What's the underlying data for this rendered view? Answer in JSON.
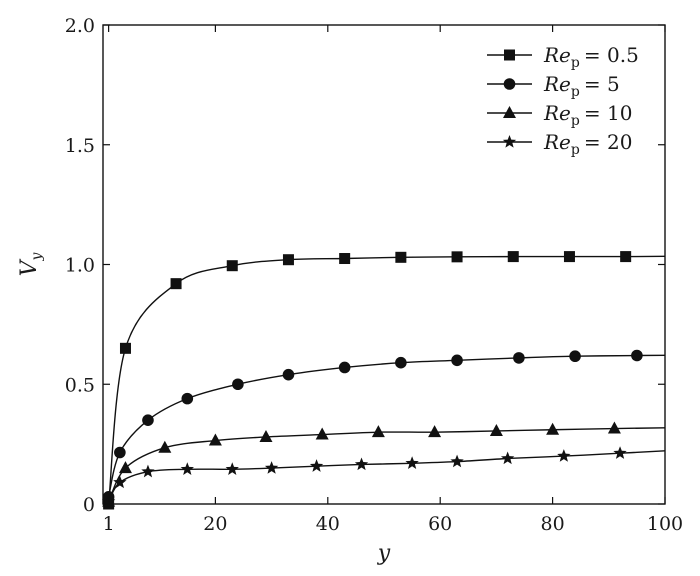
{
  "chart_data": {
    "type": "line",
    "xlabel": "y",
    "ylabel": "V",
    "ylabel_sub": "y",
    "xlim": [
      0,
      100
    ],
    "ylim": [
      0,
      2.0
    ],
    "xticks": [
      1,
      20,
      40,
      60,
      80,
      100
    ],
    "xtick_labels": [
      "1",
      "20",
      "40",
      "60",
      "80",
      "100"
    ],
    "yticks": [
      0,
      0.5,
      1.0,
      1.5,
      2.0
    ],
    "ytick_labels": [
      "0",
      "0.5",
      "1.0",
      "1.5",
      "2.0"
    ],
    "grid": false,
    "legend_position": "top-right",
    "series": [
      {
        "name": "Re_p = 0.5",
        "legend_label": {
          "base": "Re",
          "sub": "p",
          "value": "= 0.5"
        },
        "marker": "square",
        "color": "#111111",
        "x": [
          1,
          4,
          13,
          23,
          33,
          43,
          53,
          63,
          73,
          83,
          93
        ],
        "y": [
          0.0,
          0.65,
          0.92,
          0.995,
          1.02,
          1.025,
          1.03,
          1.032,
          1.033,
          1.033,
          1.033
        ]
      },
      {
        "name": "Re_p = 5",
        "legend_label": {
          "base": "Re",
          "sub": "p",
          "value": "= 5"
        },
        "marker": "circle",
        "color": "#111111",
        "x": [
          1,
          3,
          8,
          15,
          24,
          33,
          43,
          53,
          63,
          74,
          84,
          95
        ],
        "y": [
          0.03,
          0.215,
          0.35,
          0.44,
          0.5,
          0.54,
          0.57,
          0.59,
          0.6,
          0.61,
          0.617,
          0.62
        ]
      },
      {
        "name": "Re_p = 10",
        "legend_label": {
          "base": "Re",
          "sub": "p",
          "value": "= 10"
        },
        "marker": "triangle",
        "color": "#111111",
        "x": [
          1,
          4,
          11,
          20,
          29,
          39,
          49,
          59,
          70,
          80,
          91
        ],
        "y": [
          0.01,
          0.15,
          0.235,
          0.265,
          0.28,
          0.29,
          0.3,
          0.3,
          0.305,
          0.31,
          0.315
        ]
      },
      {
        "name": "Re_p = 20",
        "legend_label": {
          "base": "Re",
          "sub": "p",
          "value": "= 20"
        },
        "marker": "star",
        "color": "#111111",
        "x": [
          1,
          3,
          8,
          15,
          23,
          30,
          38,
          46,
          55,
          63,
          72,
          82,
          92
        ],
        "y": [
          0.01,
          0.09,
          0.135,
          0.145,
          0.145,
          0.15,
          0.158,
          0.165,
          0.17,
          0.177,
          0.19,
          0.2,
          0.212
        ]
      }
    ]
  }
}
